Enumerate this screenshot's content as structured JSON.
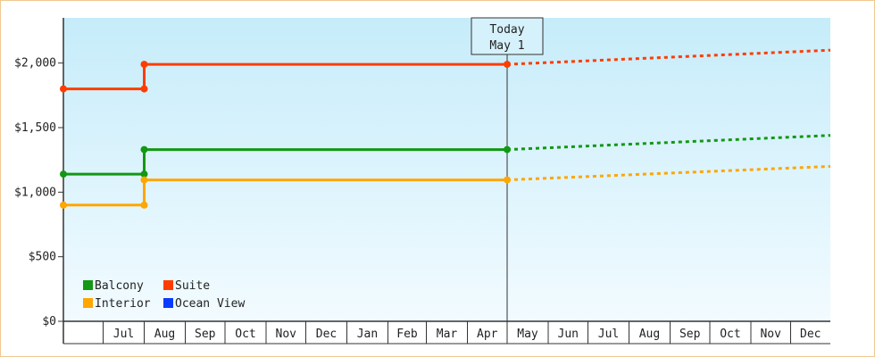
{
  "chart_data": {
    "type": "line",
    "title": "",
    "xlabel": "",
    "ylabel": "",
    "ylim": [
      0,
      2350
    ],
    "y_ticks": [
      0,
      500,
      1000,
      1500,
      2000
    ],
    "y_tick_labels": [
      "$0",
      "$500",
      "$1,000",
      "$1,500",
      "$2,000"
    ],
    "x_tick_labels": [
      "Jul",
      "Aug",
      "Sep",
      "Oct",
      "Nov",
      "Dec",
      "Jan",
      "Feb",
      "Mar",
      "Apr",
      "May",
      "Jun",
      "Jul",
      "Aug",
      "Sep",
      "Oct",
      "Nov",
      "Dec"
    ],
    "x_range": [
      "2023-06-01",
      "2024-12-31"
    ],
    "grid": false,
    "today_marker": {
      "date": "2024-05-01",
      "line1": "Today",
      "line2": "May 1"
    },
    "legend_position": "bottom-left",
    "series": [
      {
        "name": "Balcony",
        "color": "#129812",
        "actual": [
          [
            "2023-06-01",
            1140
          ],
          [
            "2023-08-01",
            1140
          ],
          [
            "2023-08-01",
            1330
          ],
          [
            "2024-05-01",
            1330
          ]
        ],
        "forecast": [
          [
            "2024-05-01",
            1330
          ],
          [
            "2024-12-31",
            1440
          ]
        ]
      },
      {
        "name": "Suite",
        "color": "#ff3c00",
        "actual": [
          [
            "2023-06-01",
            1800
          ],
          [
            "2023-08-01",
            1800
          ],
          [
            "2023-08-01",
            1990
          ],
          [
            "2024-05-01",
            1990
          ]
        ],
        "forecast": [
          [
            "2024-05-01",
            1990
          ],
          [
            "2024-12-31",
            2100
          ]
        ]
      },
      {
        "name": "Interior",
        "color": "#ffa600",
        "actual": [
          [
            "2023-06-01",
            900
          ],
          [
            "2023-08-01",
            900
          ],
          [
            "2023-08-01",
            1095
          ],
          [
            "2024-05-01",
            1095
          ]
        ],
        "forecast": [
          [
            "2024-05-01",
            1095
          ],
          [
            "2024-12-31",
            1200
          ]
        ]
      },
      {
        "name": "Ocean View",
        "color": "#0a3cff",
        "actual": [],
        "forecast": []
      }
    ]
  }
}
